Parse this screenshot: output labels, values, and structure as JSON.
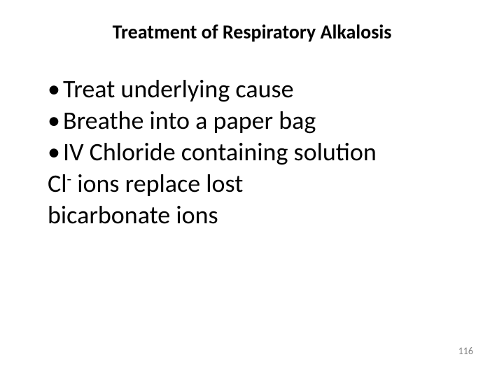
{
  "slide": {
    "title": "Treatment of Respiratory Alkalosis",
    "bullets": {
      "item1": "Treat underlying cause",
      "item2": "Breathe into a paper bag",
      "item3": "IV Chloride containing solution",
      "subline1_pre": "Cl",
      "subline1_sup": "-",
      "subline1_post": " ions replace lost",
      "subline2": "bicarbonate ions"
    },
    "page_number": "116",
    "colors": {
      "background": "#ffffff",
      "text": "#000000",
      "page_number": "#7f7f7f"
    },
    "typography": {
      "title_fontsize": 28,
      "title_weight": "bold",
      "body_fontsize": 36,
      "pagenum_fontsize": 14,
      "font_family": "Calibri"
    }
  }
}
